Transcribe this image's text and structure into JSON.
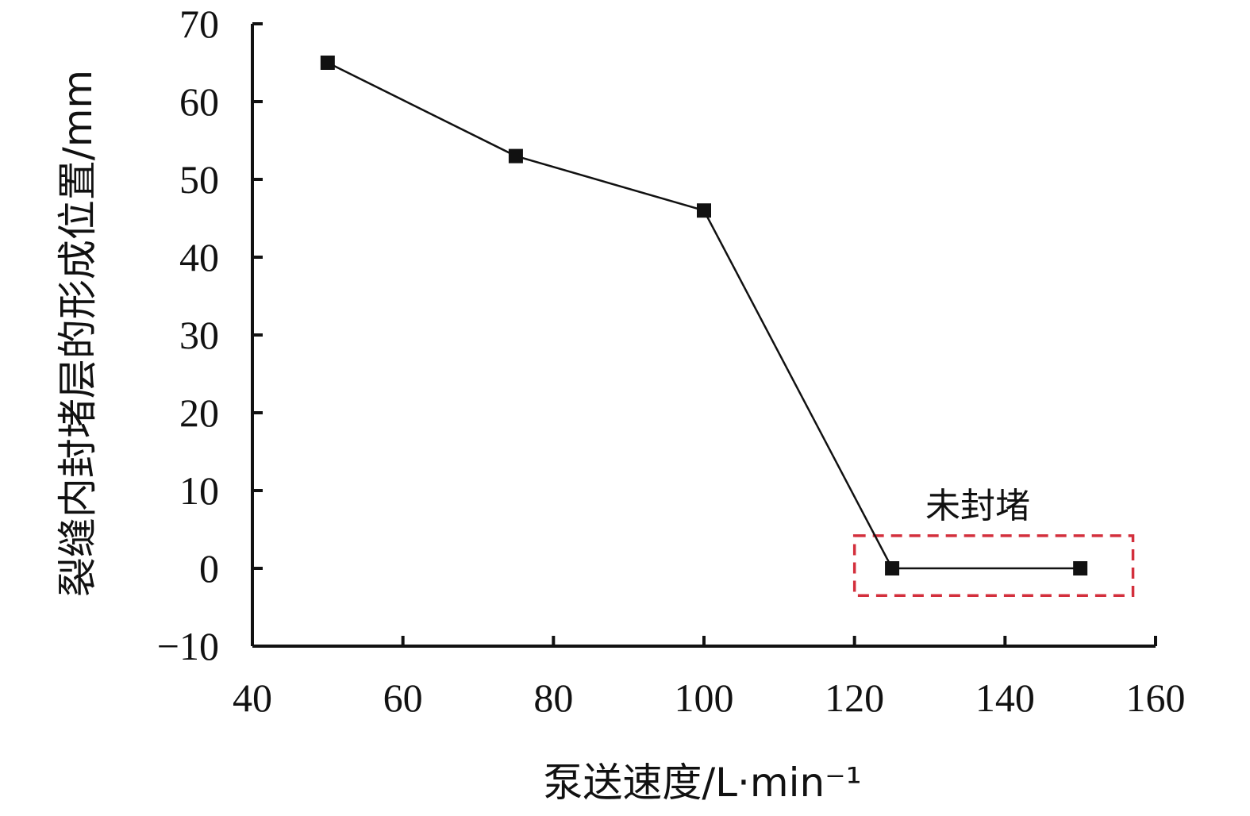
{
  "chart_data": {
    "type": "line",
    "xlabel": "泵送速度/L·min⁻¹",
    "ylabel": "裂缝内封堵层的形成位置/mm",
    "xlim": [
      40,
      160
    ],
    "ylim": [
      -10,
      70
    ],
    "x_ticks": [
      "40",
      "60",
      "80",
      "100",
      "120",
      "140",
      "160"
    ],
    "y_ticks": [
      "−10",
      "0",
      "10",
      "20",
      "30",
      "40",
      "50",
      "60",
      "70"
    ],
    "grid": false,
    "legend": "none",
    "series": [
      {
        "x": [
          50,
          75,
          100,
          125,
          150
        ],
        "y": [
          65,
          53,
          46,
          0,
          0
        ],
        "color": "#111111",
        "marker": "square"
      }
    ],
    "annotations": [
      {
        "text": "未封堵",
        "box_x": [
          120,
          157
        ],
        "box_y": [
          -3.5,
          4.2
        ],
        "box_color": "#d32f3c"
      }
    ]
  }
}
